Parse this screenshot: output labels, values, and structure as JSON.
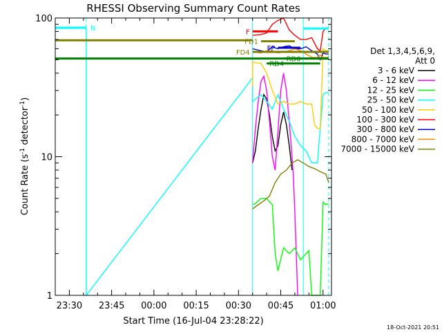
{
  "chart_data": {
    "type": "line",
    "title": "RHESSI Observing Summary Count Rates",
    "xlabel": "Start Time (16-Jul-04 23:28:22)",
    "ylabel_main": "Count Rate (s",
    "ylabel_exp1": "-1",
    "ylabel_mid": " detector",
    "ylabel_exp2": "-1",
    "ylabel_end": ")",
    "x_range_minutes": [
      -3,
      95
    ],
    "y_scale": "log",
    "ylim": [
      1,
      100
    ],
    "x_ticks": [
      {
        "t": 2,
        "label": "23:30"
      },
      {
        "t": 17,
        "label": "23:45"
      },
      {
        "t": 32,
        "label": "00:00"
      },
      {
        "t": 47,
        "label": "00:15"
      },
      {
        "t": 62,
        "label": "00:30"
      },
      {
        "t": 77,
        "label": "00:45"
      },
      {
        "t": 92,
        "label": "01:00"
      }
    ],
    "y_ticks": [
      {
        "v": 1,
        "label": "1"
      },
      {
        "v": 10,
        "label": "10"
      },
      {
        "v": 100,
        "label": "100"
      }
    ],
    "legend": {
      "header1": "Det 1,3,4,5,6,9,",
      "header2": "Att 0",
      "position": "right"
    },
    "series": [
      {
        "name": "3 - 6 keV",
        "color": "#000000",
        "points": [
          [
            67,
            9
          ],
          [
            68,
            11
          ],
          [
            69,
            16
          ],
          [
            70,
            22
          ],
          [
            71,
            28
          ],
          [
            72,
            26
          ],
          [
            73,
            20
          ],
          [
            74,
            14
          ],
          [
            75,
            11
          ],
          [
            76,
            12
          ],
          [
            77,
            17
          ],
          [
            78,
            21
          ],
          [
            79,
            17
          ],
          [
            80,
            12
          ],
          [
            81,
            8
          ]
        ]
      },
      {
        "name": "6 - 12 keV",
        "color": "#ff00ff",
        "points": [
          [
            67,
            9
          ],
          [
            68,
            16
          ],
          [
            69,
            25
          ],
          [
            70,
            35
          ],
          [
            71,
            38
          ],
          [
            72,
            30
          ],
          [
            73,
            18
          ],
          [
            74,
            10
          ],
          [
            75,
            8
          ],
          [
            76,
            15
          ],
          [
            77,
            30
          ],
          [
            78,
            40
          ],
          [
            79,
            30
          ],
          [
            80,
            18
          ],
          [
            81,
            10
          ],
          [
            81.5,
            7
          ],
          [
            82,
            4
          ],
          [
            82.5,
            2
          ],
          [
            83,
            1
          ]
        ]
      },
      {
        "name": "12 - 25 keV",
        "color": "#00ff00",
        "points": [
          [
            67,
            4.5
          ],
          [
            68,
            4.6
          ],
          [
            70,
            5
          ],
          [
            72,
            5
          ],
          [
            74,
            4.5
          ],
          [
            75,
            2
          ],
          [
            76,
            1.5
          ],
          [
            78,
            2.2
          ],
          [
            80,
            2
          ],
          [
            82,
            2.2
          ],
          [
            84,
            1.8
          ],
          [
            86,
            2
          ],
          [
            87,
            2.1
          ],
          [
            88,
            1
          ],
          [
            91,
            1
          ],
          [
            92,
            4.7
          ],
          [
            93,
            4.5
          ],
          [
            94,
            4.6
          ]
        ]
      },
      {
        "name": "25 - 50 keV",
        "color": "#00ffff",
        "points": [
          [
            -3,
            85
          ],
          [
            8,
            85
          ],
          [
            8,
            1
          ],
          [
            67,
            37
          ],
          [
            67,
            25
          ],
          [
            70,
            28
          ],
          [
            72,
            25
          ],
          [
            74,
            22
          ],
          [
            76,
            28
          ],
          [
            78,
            22
          ],
          [
            80,
            18
          ],
          [
            82,
            14
          ],
          [
            84,
            12
          ],
          [
            86,
            11
          ],
          [
            88,
            9
          ],
          [
            90,
            9
          ],
          [
            92,
            28
          ],
          [
            93,
            29
          ],
          [
            94,
            29
          ]
        ]
      },
      {
        "name": "50 - 100 keV",
        "color": "#ffcc00",
        "points": [
          [
            67,
            32
          ],
          [
            67,
            48
          ],
          [
            70,
            47
          ],
          [
            72,
            40
          ],
          [
            74,
            30
          ],
          [
            76,
            24
          ],
          [
            78,
            25
          ],
          [
            80,
            24
          ],
          [
            82,
            24
          ],
          [
            84,
            25
          ],
          [
            86,
            24
          ],
          [
            88,
            24
          ],
          [
            89,
            17
          ],
          [
            90,
            16
          ],
          [
            91,
            16
          ],
          [
            92,
            60
          ],
          [
            93,
            58
          ],
          [
            94,
            58
          ]
        ]
      },
      {
        "name": "100 - 300 keV",
        "color": "#ff0000",
        "points": [
          [
            67,
            75
          ],
          [
            70,
            76
          ],
          [
            72,
            78
          ],
          [
            74,
            90
          ],
          [
            76,
            96
          ],
          [
            78,
            100
          ],
          [
            80,
            82
          ],
          [
            82,
            75
          ],
          [
            84,
            70
          ],
          [
            86,
            70
          ],
          [
            88,
            72
          ],
          [
            90,
            60
          ],
          [
            91,
            58
          ],
          [
            92,
            80
          ],
          [
            93,
            85
          ],
          [
            94,
            85
          ]
        ]
      },
      {
        "name": "300 - 800 keV",
        "color": "#0000cc",
        "points": [
          [
            67,
            60
          ],
          [
            70,
            58
          ],
          [
            72,
            57
          ],
          [
            74,
            62
          ],
          [
            76,
            60
          ],
          [
            78,
            62
          ],
          [
            80,
            63
          ],
          [
            82,
            60
          ],
          [
            84,
            60
          ],
          [
            86,
            62
          ],
          [
            88,
            58
          ],
          [
            90,
            55
          ],
          [
            91,
            50
          ],
          [
            92,
            56
          ],
          [
            93,
            55
          ],
          [
            94,
            55
          ]
        ]
      },
      {
        "name": "800 - 7000 keV",
        "color": "#ff8800",
        "points": [
          [
            67,
            57
          ],
          [
            70,
            56
          ],
          [
            72,
            58
          ],
          [
            74,
            58
          ],
          [
            76,
            56
          ],
          [
            78,
            57
          ],
          [
            80,
            58
          ],
          [
            82,
            60
          ],
          [
            84,
            58
          ],
          [
            86,
            55
          ],
          [
            88,
            52
          ],
          [
            90,
            52
          ],
          [
            91,
            54
          ],
          [
            92,
            52
          ],
          [
            94,
            52
          ]
        ]
      },
      {
        "name": "7000 - 15000 keV",
        "color": "#808000",
        "points": [
          [
            67,
            4.2
          ],
          [
            69,
            4.5
          ],
          [
            71,
            4.8
          ],
          [
            73,
            5.2
          ],
          [
            75,
            6.5
          ],
          [
            77,
            7.5
          ],
          [
            79,
            8
          ],
          [
            81,
            9
          ],
          [
            83,
            9.5
          ],
          [
            85,
            9
          ],
          [
            87,
            8.5
          ],
          [
            89,
            8.2
          ],
          [
            91,
            7.8
          ],
          [
            93,
            7.5
          ],
          [
            94,
            6.5
          ]
        ]
      }
    ],
    "flag_lines": [
      {
        "label": "F",
        "color": "#ff0000",
        "t0": 67,
        "t1": 76,
        "y": 80,
        "label_side": "left"
      },
      {
        "label": "N",
        "color": "#00ffff",
        "t0": -3,
        "t1": 8,
        "y": 85,
        "label_side": "right"
      },
      {
        "label": "",
        "color": "#00ffff",
        "t0": 85,
        "t1": 94,
        "y": 84,
        "label_side": "none"
      },
      {
        "label": "",
        "color": "#808000",
        "t0": -3,
        "t1": 67,
        "y": 69,
        "label_side": "none"
      },
      {
        "label": "FD1",
        "color": "#808000",
        "t0": 70,
        "t1": 82,
        "y": 68,
        "label_side": "left"
      },
      {
        "label": "FD4",
        "color": "#808000",
        "t0": 67,
        "t1": 94,
        "y": 57,
        "label_side": "left"
      },
      {
        "label": "",
        "color": "#008000",
        "t0": -3,
        "t1": 94,
        "y": 51,
        "label_side": "none"
      },
      {
        "label": "RD0",
        "color": "#008000",
        "t0": 78,
        "t1": 94,
        "y": 51,
        "label_side": "over"
      },
      {
        "label": "RD4",
        "color": "#008000",
        "t0": 72,
        "t1": 91,
        "y": 47,
        "label_side": "over"
      },
      {
        "label": "FP",
        "color": "#0000cc",
        "t0": 76,
        "t1": 84,
        "y": 61,
        "label_side": "left"
      }
    ],
    "vlines": [
      {
        "t": -3,
        "color": "#00ffff",
        "dash": false
      },
      {
        "t": 8,
        "color": "#00ffff",
        "dash": true
      },
      {
        "t": 67,
        "color": "#00ffff",
        "dash": false
      },
      {
        "t": 85,
        "color": "#00ffff",
        "dash": false
      },
      {
        "t": 94,
        "color": "#00ffff",
        "dash": true
      }
    ]
  },
  "footer": {
    "timestamp": "18-Oct-2021 20:51"
  }
}
